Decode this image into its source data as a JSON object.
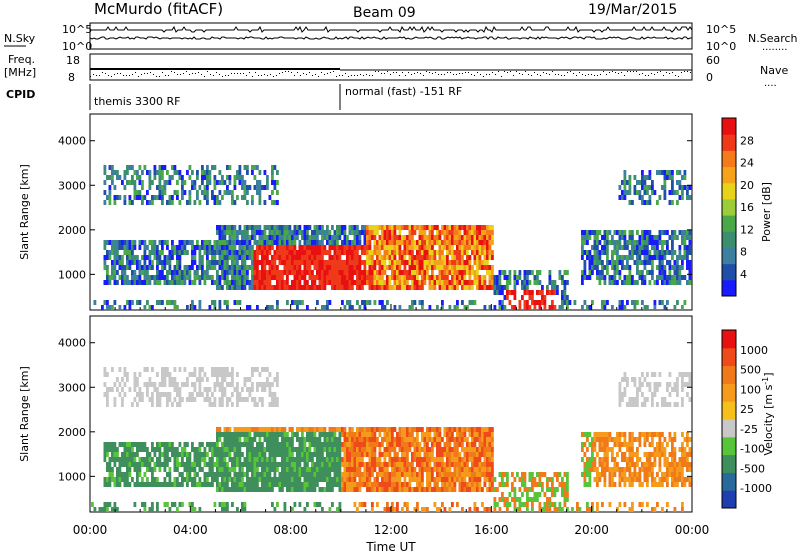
{
  "header": {
    "station": "McMurdo (fitACF)",
    "beam": "Beam 09",
    "date": "19/Mar/2015"
  },
  "labels": {
    "nsky": "N.Sky",
    "nsearch": "N.Search",
    "nsearch_dots": "........",
    "freq_line1": "Freq.",
    "freq_line2": "[MHz]",
    "nave": "Nave",
    "nave_dots": "....",
    "cpid": "CPID",
    "cpid_mode1": "themis 3300 RF",
    "cpid_mode2": "normal (fast) -151 RF"
  },
  "top_axes": {
    "nsky_ticks_left": [
      "10^5",
      "10^0"
    ],
    "nsky_ticks_right": [
      "10^5",
      "10^0"
    ],
    "freq_ticks": [
      "18",
      "8"
    ],
    "nave_ticks": [
      "60",
      "0"
    ]
  },
  "chart_data": [
    {
      "type": "heatmap",
      "name": "power",
      "ylabel": "Slant Range [km]",
      "yticks": [
        "4000",
        "3000",
        "2000",
        "1000"
      ],
      "ylim": [
        200,
        4600
      ],
      "colorbar": {
        "label": "Power [dB]",
        "ticks": [
          "28",
          "24",
          "20",
          "16",
          "12",
          "8",
          "4"
        ],
        "colors": [
          "#1a1aff",
          "#1f4fa8",
          "#3c7fa0",
          "#3c8f6e",
          "#4aa84a",
          "#9bcc3a",
          "#e8d21a",
          "#f5a31a",
          "#f47a1a",
          "#ee3a1a",
          "#e81010"
        ]
      }
    },
    {
      "type": "heatmap",
      "name": "velocity",
      "ylabel": "Slant Range [km]",
      "yticks": [
        "4000",
        "3000",
        "2000",
        "1000"
      ],
      "ylim": [
        200,
        4600
      ],
      "colorbar": {
        "label": "Velocity [m s",
        "label_sup": "-1",
        "label_end": "]",
        "ticks": [
          "1000",
          "500",
          "100",
          "25",
          "-25",
          "-100",
          "-500",
          "-1000"
        ],
        "colors": [
          "#1f3fb0",
          "#2a6a9a",
          "#3f8f5c",
          "#58c43a",
          "#c8c8c8",
          "#f5c01a",
          "#f59a1a",
          "#f07a1a",
          "#ee4a1a",
          "#e81010"
        ]
      }
    }
  ],
  "xaxis": {
    "label": "Time UT",
    "ticks": [
      "00:00",
      "04:00",
      "08:00",
      "12:00",
      "16:00",
      "20:00",
      "00:00"
    ]
  }
}
